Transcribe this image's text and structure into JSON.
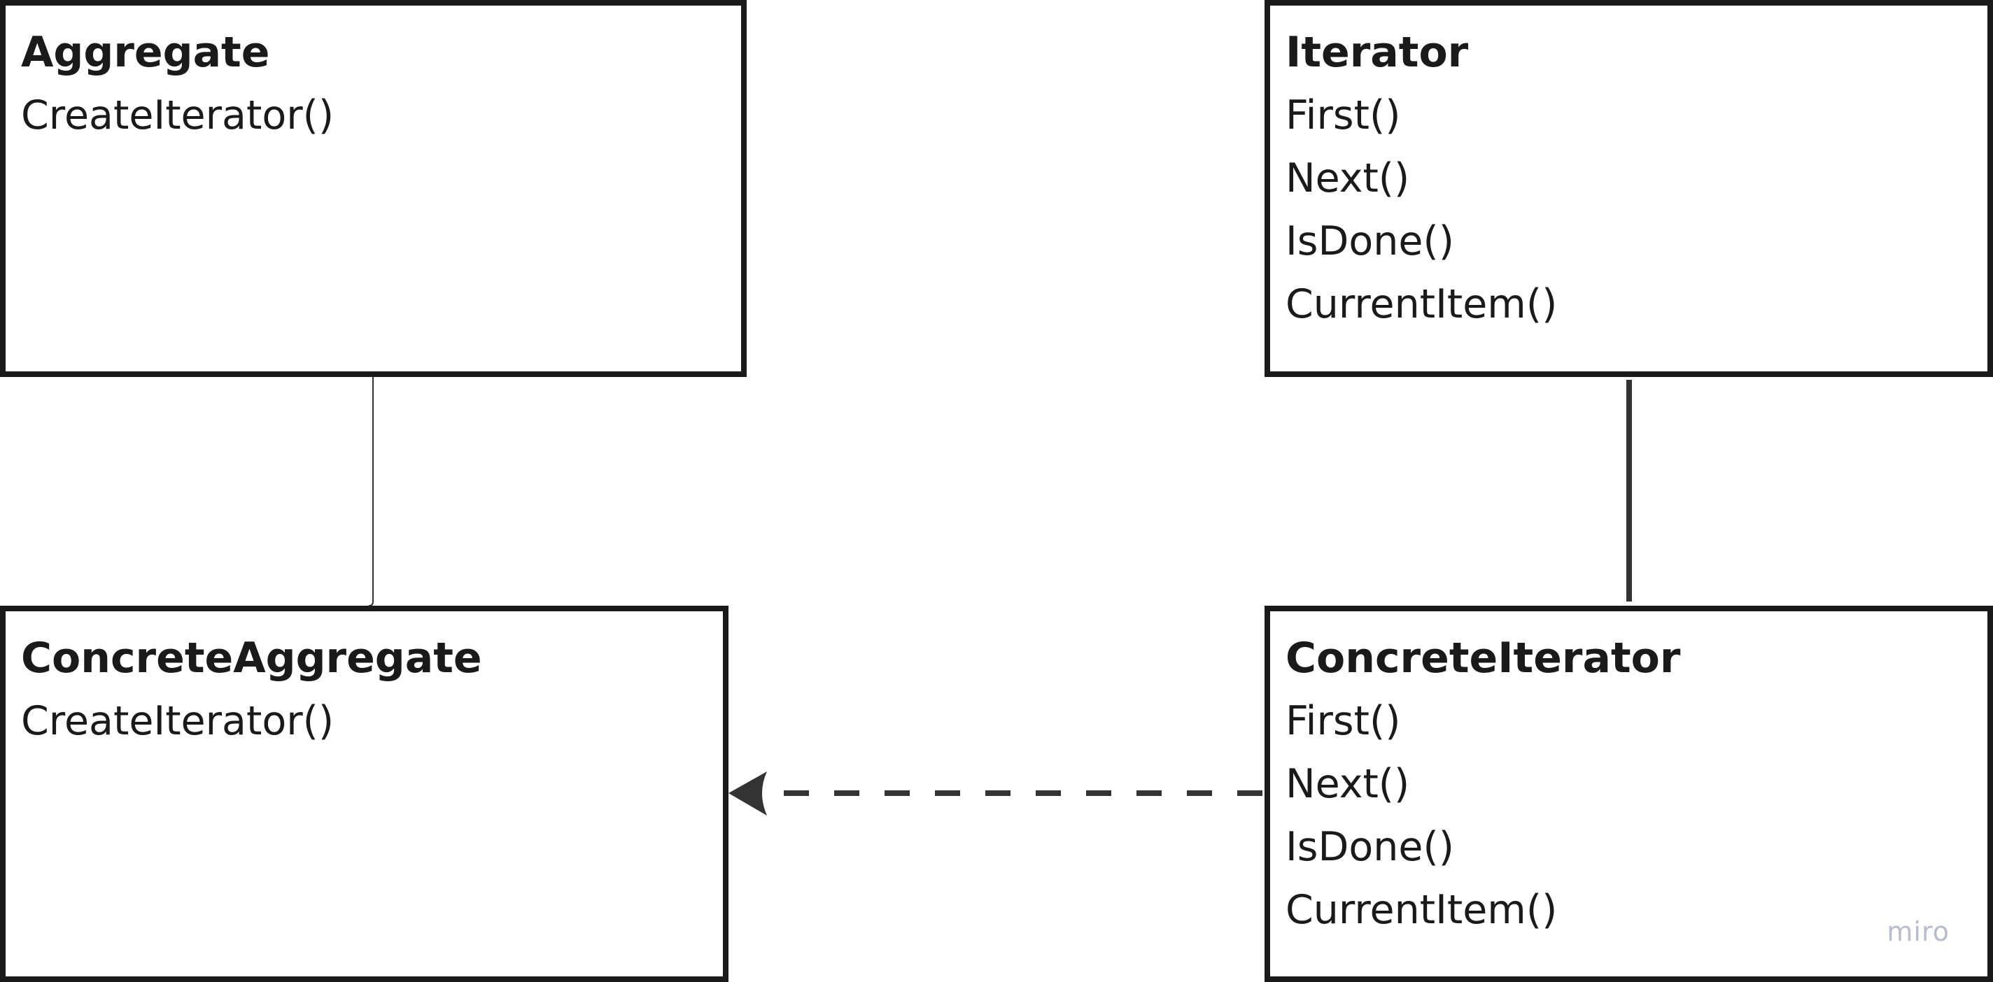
{
  "aggregate": {
    "title": "Aggregate",
    "methods": [
      "CreateIterator()"
    ]
  },
  "iterator": {
    "title": "Iterator",
    "methods": [
      "First()",
      "Next()",
      "IsDone()",
      "CurrentItem()"
    ]
  },
  "concrete_aggregate": {
    "title": "ConcreteAggregate",
    "methods": [
      "CreateIterator()"
    ]
  },
  "concrete_iterator": {
    "title": "ConcreteIterator",
    "methods": [
      "First()",
      "Next()",
      "IsDone()",
      "CurrentItem()"
    ]
  },
  "watermark": "miro",
  "colors": {
    "stroke": "#1a1a1a",
    "connector": "#333333",
    "watermark": "#b9bccc"
  }
}
